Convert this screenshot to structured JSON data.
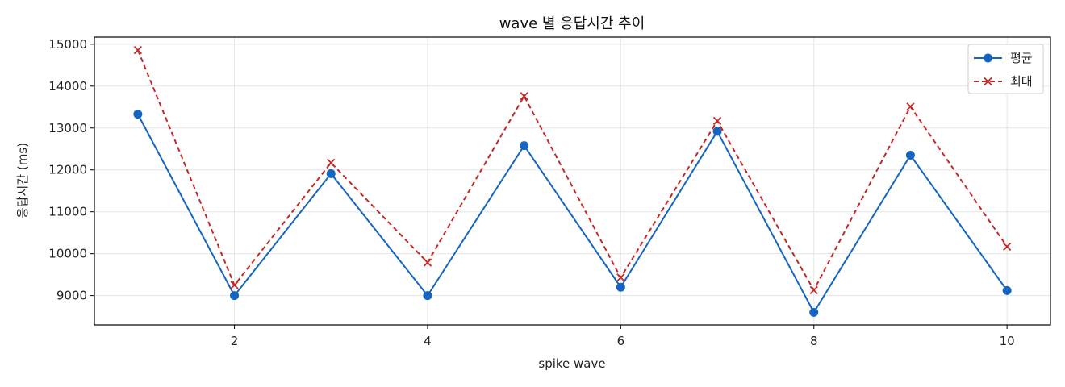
{
  "chart_data": {
    "type": "line",
    "title": "wave 별 응답시간 추이",
    "xlabel": "spike wave",
    "ylabel": "응답시간 (ms)",
    "x": [
      1,
      2,
      3,
      4,
      5,
      6,
      7,
      8,
      9,
      10
    ],
    "xticks": [
      2,
      4,
      6,
      8,
      10
    ],
    "yticks": [
      9000,
      10000,
      11000,
      12000,
      13000,
      14000,
      15000
    ],
    "xlim": [
      0.55,
      10.45
    ],
    "ylim": [
      8300,
      15170
    ],
    "grid": true,
    "legend_position": "top-right",
    "series": [
      {
        "name": "평균",
        "color": "#1565c0",
        "line_style": "solid",
        "marker": "circle",
        "values": [
          13330,
          9000,
          11910,
          9000,
          12580,
          9200,
          12920,
          8600,
          12350,
          9120
        ]
      },
      {
        "name": "최대",
        "color": "#c62828",
        "line_style": "dashed",
        "marker": "x",
        "values": [
          14860,
          9250,
          12170,
          9790,
          13760,
          9430,
          13170,
          9130,
          13510,
          10170
        ]
      }
    ]
  }
}
